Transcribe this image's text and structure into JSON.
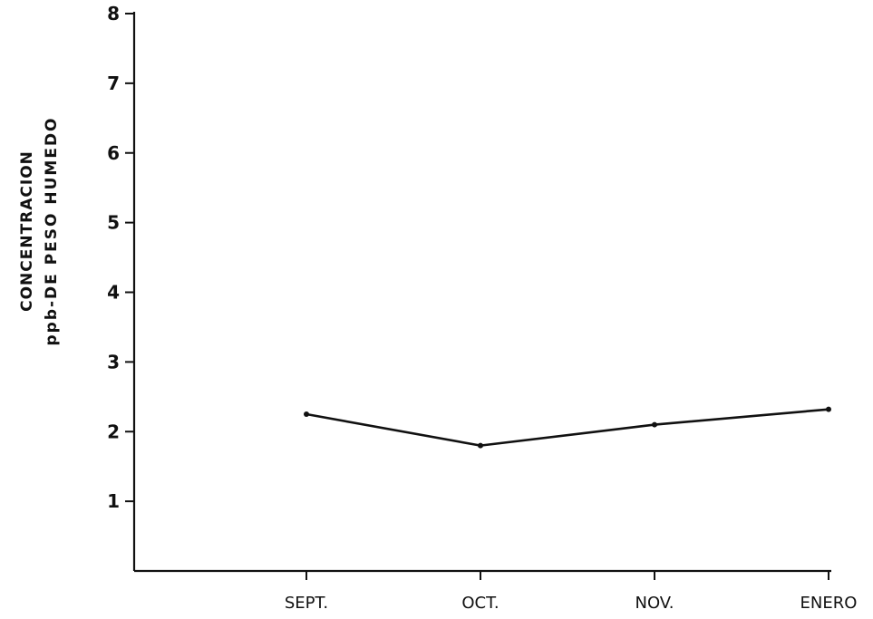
{
  "chart_data": {
    "type": "line",
    "title": "",
    "xlabel": "",
    "ylabel": [
      "CONCENTRACION",
      "ppb-DE PESO HUMEDO"
    ],
    "categories": [
      "SEPT.",
      "OCT.",
      "NOV.",
      "ENERO"
    ],
    "series": [
      {
        "values": [
          2.25,
          1.8,
          2.1,
          2.32
        ]
      }
    ],
    "ylim": [
      0,
      8
    ],
    "yticks": [
      1,
      2,
      3,
      4,
      5,
      6,
      7,
      8
    ],
    "grid": false,
    "line_color": "#111111"
  }
}
